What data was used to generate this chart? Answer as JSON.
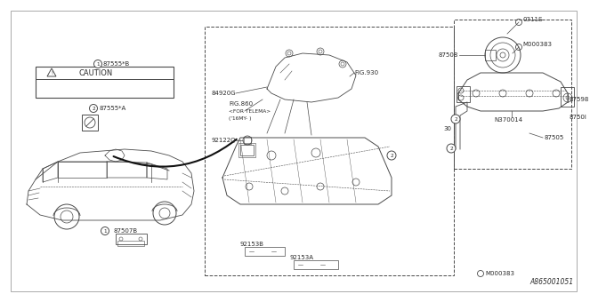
{
  "bg_color": "#ffffff",
  "line_color": "#4a4a4a",
  "text_color": "#2a2a2a",
  "diagram_number": "A865001051",
  "fs_small": 5.0,
  "fs_tiny": 4.2,
  "labels": {
    "part1_label": "87555*B",
    "part2_label": "87555*A",
    "caution": "CAUTION",
    "fig930": "FIG.930",
    "fig860": "FIG.860",
    "telema": "<FOR TELEMA>",
    "my16": "('16MY- )",
    "p84920G": "84920G",
    "p87508": "87508",
    "p87598": "87598",
    "p87501": "8750I",
    "p87505": "87505",
    "p87507B": "87507B",
    "p92122Q": "92122Q",
    "p92153B": "92153B",
    "p92153A": "92153A",
    "pN370014": "N370014",
    "pM000383_top": "M000383",
    "pM000383_bot": "M000383",
    "p0311S": "0311S",
    "p30": "30"
  }
}
